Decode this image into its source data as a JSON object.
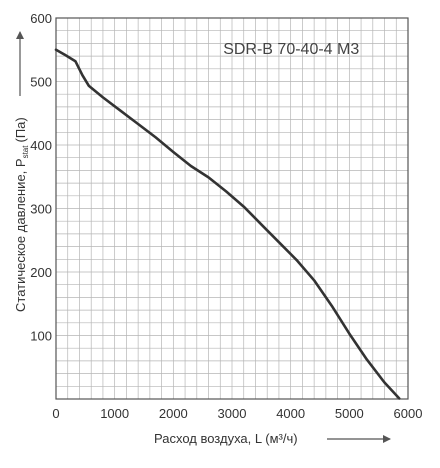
{
  "chart_data": {
    "type": "line",
    "title": "",
    "annotation": "SDR-B 70-40-4 M3",
    "xlabel": "Расход воздуха, L (м³/ч)",
    "ylabel": "Статическое давление, P",
    "ylabel_sub": "stat",
    "ylabel_unit": "(Па)",
    "xlim": [
      0,
      6000
    ],
    "ylim": [
      0,
      600
    ],
    "x_ticks": [
      "0",
      "1000",
      "2000",
      "3000",
      "4000",
      "5000",
      "6000"
    ],
    "y_ticks": [
      "100",
      "200",
      "300",
      "400",
      "500",
      "600"
    ],
    "grid": true,
    "colors": {
      "line": "#333333",
      "grid": "#b5b5b5",
      "frame": "#555555"
    },
    "series": [
      {
        "x": [
          0,
          150,
          330,
          450,
          560,
          800,
          1100,
          1400,
          1700,
          2000,
          2300,
          2600,
          2900,
          3200,
          3500,
          3800,
          4100,
          4400,
          4700,
          5000,
          5300,
          5600,
          5850
        ],
        "values": [
          550,
          542,
          532,
          510,
          493,
          475,
          454,
          433,
          412,
          389,
          367,
          349,
          327,
          303,
          275,
          247,
          219,
          187,
          147,
          103,
          62,
          26,
          1
        ]
      }
    ]
  }
}
